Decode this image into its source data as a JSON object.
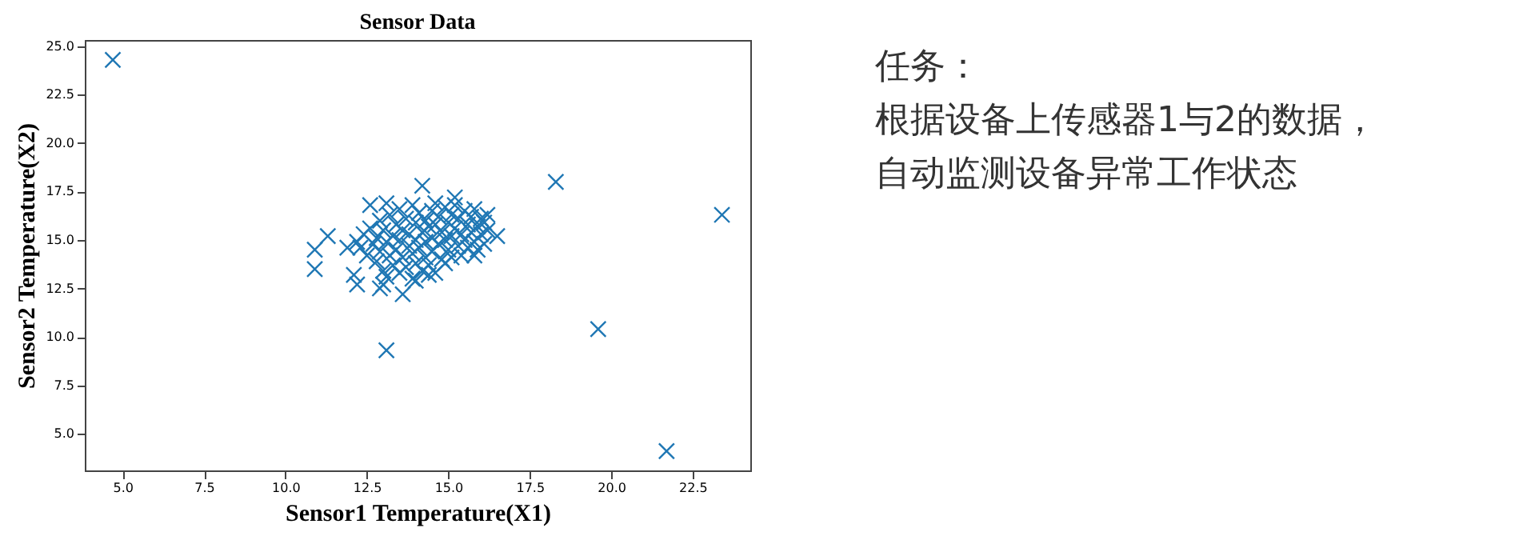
{
  "chart_data": {
    "type": "scatter",
    "title": "Sensor Data",
    "xlabel": "Sensor1 Temperature(X1)",
    "ylabel": "Sensor2 Temperature(X2)",
    "annotations": [
      "任务：",
      "根据设备上传感器1与2的数据，",
      "自动监测设备异常工作状态"
    ],
    "xlim": [
      3.84,
      24.27
    ],
    "ylim": [
      3.1,
      25.33
    ],
    "xticks": [
      {
        "value": 5,
        "label": "5.0"
      },
      {
        "value": 7.5,
        "label": "7.5"
      },
      {
        "value": 10,
        "label": "10.0"
      },
      {
        "value": 12.5,
        "label": "12.5"
      },
      {
        "value": 15,
        "label": "15.0"
      },
      {
        "value": 17.5,
        "label": "17.5"
      },
      {
        "value": 20,
        "label": "20.0"
      },
      {
        "value": 22.5,
        "label": "22.5"
      }
    ],
    "yticks": [
      {
        "value": 5,
        "label": "5.0"
      },
      {
        "value": 7.5,
        "label": "7.5"
      },
      {
        "value": 10,
        "label": "10.0"
      },
      {
        "value": 12.5,
        "label": "12.5"
      },
      {
        "value": 15,
        "label": "15.0"
      },
      {
        "value": 17.5,
        "label": "17.5"
      },
      {
        "value": 20,
        "label": "20.0"
      },
      {
        "value": 22.5,
        "label": "22.5"
      },
      {
        "value": 25,
        "label": "25.0"
      }
    ],
    "grid": false,
    "legend": false,
    "marker": "cross",
    "series": [
      {
        "color": "#1f77b4",
        "x": [
          4.7,
          18.3,
          23.4,
          19.6,
          21.7,
          13.1,
          10.9,
          10.9,
          11.3,
          13.6,
          16.5,
          14.2,
          12.1,
          12.2,
          12.9,
          12.6,
          13.1,
          15.2,
          12.3,
          12.4,
          12.5,
          12.6,
          12.7,
          12.8,
          12.8,
          12.9,
          12.9,
          13.0,
          13.0,
          13.1,
          13.1,
          13.2,
          13.2,
          13.3,
          13.3,
          13.4,
          13.4,
          13.5,
          13.5,
          13.5,
          13.6,
          13.6,
          13.7,
          13.7,
          13.8,
          13.8,
          13.9,
          13.9,
          13.9,
          14.0,
          14.0,
          14.0,
          14.1,
          14.1,
          14.2,
          14.2,
          14.3,
          14.3,
          14.3,
          14.4,
          14.4,
          14.5,
          14.5,
          14.5,
          14.6,
          14.6,
          14.7,
          14.7,
          14.8,
          14.8,
          14.9,
          14.9,
          14.9,
          15.0,
          15.0,
          15.1,
          15.1,
          15.1,
          15.2,
          15.2,
          15.3,
          15.3,
          15.4,
          15.4,
          15.5,
          15.5,
          15.6,
          15.6,
          15.7,
          15.7,
          15.8,
          15.8,
          15.9,
          15.9,
          16.0,
          16.0,
          16.1,
          16.1,
          16.2,
          16.2,
          13.0,
          12.2,
          11.9,
          14.6,
          15.8,
          14.0,
          14.4
        ],
        "values": [
          24.3,
          18.0,
          16.3,
          10.4,
          4.1,
          9.3,
          14.5,
          13.5,
          15.2,
          12.2,
          15.2,
          17.8,
          13.2,
          12.7,
          12.5,
          16.8,
          16.9,
          17.2,
          14.6,
          15.3,
          14.2,
          15.6,
          14.8,
          13.9,
          15.1,
          14.4,
          16.0,
          13.4,
          15.5,
          14.9,
          13.1,
          16.3,
          14.2,
          15.2,
          13.7,
          15.8,
          14.5,
          16.6,
          13.3,
          15.0,
          14.1,
          15.5,
          16.1,
          13.6,
          14.7,
          15.3,
          16.8,
          13.0,
          14.3,
          15.9,
          15.0,
          13.8,
          16.4,
          14.6,
          15.4,
          13.4,
          16.0,
          14.9,
          14.1,
          15.7,
          13.7,
          16.5,
          15.1,
          14.4,
          13.3,
          15.8,
          14.8,
          16.2,
          15.4,
          14.0,
          16.7,
          15.0,
          13.8,
          15.9,
          14.5,
          16.3,
          15.2,
          14.1,
          16.8,
          15.6,
          14.7,
          16.1,
          15.3,
          14.2,
          16.5,
          15.0,
          15.8,
          14.6,
          16.2,
          15.4,
          14.9,
          16.6,
          15.7,
          14.5,
          16.1,
          15.3,
          15.9,
          14.8,
          16.3,
          15.5,
          12.7,
          14.9,
          14.6,
          16.9,
          14.2,
          12.9,
          13.2
        ]
      }
    ]
  }
}
